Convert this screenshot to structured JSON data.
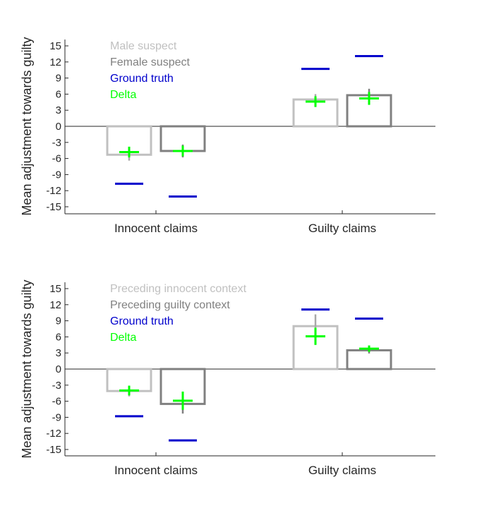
{
  "colors": {
    "bar_a": "#c0c0c0",
    "bar_b": "#808080",
    "ground_truth": "#0000cc",
    "delta": "#00ff00",
    "axis": "#262626",
    "error_a": "#a8a8a8",
    "error_b": "#808080"
  },
  "chart_data": [
    {
      "type": "bar",
      "ylabel": "Mean adjustment towards guilty",
      "xlabel": "",
      "ylim": [
        -16,
        16
      ],
      "yticks": [
        15,
        12,
        9,
        6,
        3,
        0,
        -3,
        -6,
        -9,
        -12,
        -15
      ],
      "categories": [
        "Innocent claims",
        "Guilty claims"
      ],
      "legend": [
        "Male suspect",
        "Female suspect",
        "Ground truth",
        "Delta"
      ],
      "legend_position": "top-left",
      "series": [
        {
          "name": "Male suspect",
          "values": [
            -5.3,
            5.0
          ],
          "error": [
            1.1,
            1.0
          ],
          "ground_truth": [
            -10.7,
            10.7
          ],
          "delta": [
            -4.8,
            4.6
          ],
          "delta_err": [
            1.0,
            1.0
          ]
        },
        {
          "name": "Female suspect",
          "values": [
            -4.6,
            5.8
          ],
          "error": [
            1.2,
            1.2
          ],
          "ground_truth": [
            -13.1,
            13.1
          ],
          "delta": [
            -4.6,
            5.2
          ],
          "delta_err": [
            1.0,
            1.2
          ]
        }
      ]
    },
    {
      "type": "bar",
      "ylabel": "Mean adjustment towards guilty",
      "xlabel": "",
      "ylim": [
        -16,
        16
      ],
      "yticks": [
        15,
        12,
        9,
        6,
        3,
        0,
        -3,
        -6,
        -9,
        -12,
        -15
      ],
      "categories": [
        "Innocent claims",
        "Guilty claims"
      ],
      "legend": [
        "Preceding innocent context",
        "Preceding guilty context",
        "Ground truth",
        "Delta"
      ],
      "legend_position": "top-left",
      "series": [
        {
          "name": "Preceding innocent context",
          "values": [
            -4.1,
            8.0
          ],
          "error": [
            1.0,
            2.2
          ],
          "ground_truth": [
            -8.8,
            11.1
          ],
          "delta": [
            -4.0,
            6.1
          ],
          "delta_err": [
            0.9,
            1.6
          ]
        },
        {
          "name": "Preceding guilty context",
          "values": [
            -6.5,
            3.5
          ],
          "error": [
            1.8,
            0.6
          ],
          "ground_truth": [
            -13.3,
            9.4
          ],
          "delta": [
            -5.9,
            3.8
          ],
          "delta_err": [
            1.7,
            0.6
          ]
        }
      ]
    }
  ]
}
